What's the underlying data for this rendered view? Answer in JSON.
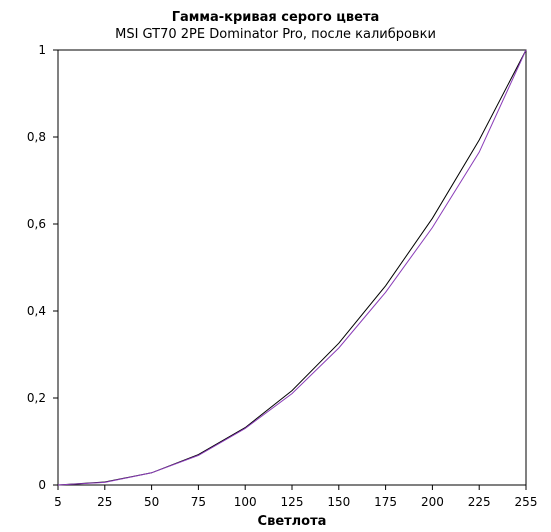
{
  "chart_data": {
    "type": "line",
    "title": "Гамма-кривая  серого цвета",
    "subtitle": "MSI GT70 2PE Dominator Pro, после калибровки",
    "xlabel": "Светлота",
    "ylabel": "",
    "x": [
      5,
      25,
      50,
      75,
      100,
      125,
      150,
      175,
      200,
      225,
      255
    ],
    "x_tick_labels": [
      "5",
      "25",
      "50",
      "75",
      "100",
      "125",
      "150",
      "175",
      "200",
      "225",
      "255"
    ],
    "y_tick_labels": [
      "0",
      "0,2",
      "0,4",
      "0,6",
      "0,8",
      "1"
    ],
    "y_ticks": [
      0,
      0.2,
      0.4,
      0.6,
      0.8,
      1
    ],
    "ylim": [
      0,
      1
    ],
    "grid": false,
    "legend": "none",
    "series": [
      {
        "color": "#000000",
        "values": [
          0.0,
          0.007,
          0.028,
          0.07,
          0.132,
          0.217,
          0.326,
          0.458,
          0.613,
          0.793,
          1.0
        ]
      },
      {
        "color": "#8a3cb8",
        "values": [
          0.0,
          0.006,
          0.028,
          0.068,
          0.13,
          0.21,
          0.315,
          0.443,
          0.592,
          0.765,
          1.0
        ]
      }
    ]
  }
}
